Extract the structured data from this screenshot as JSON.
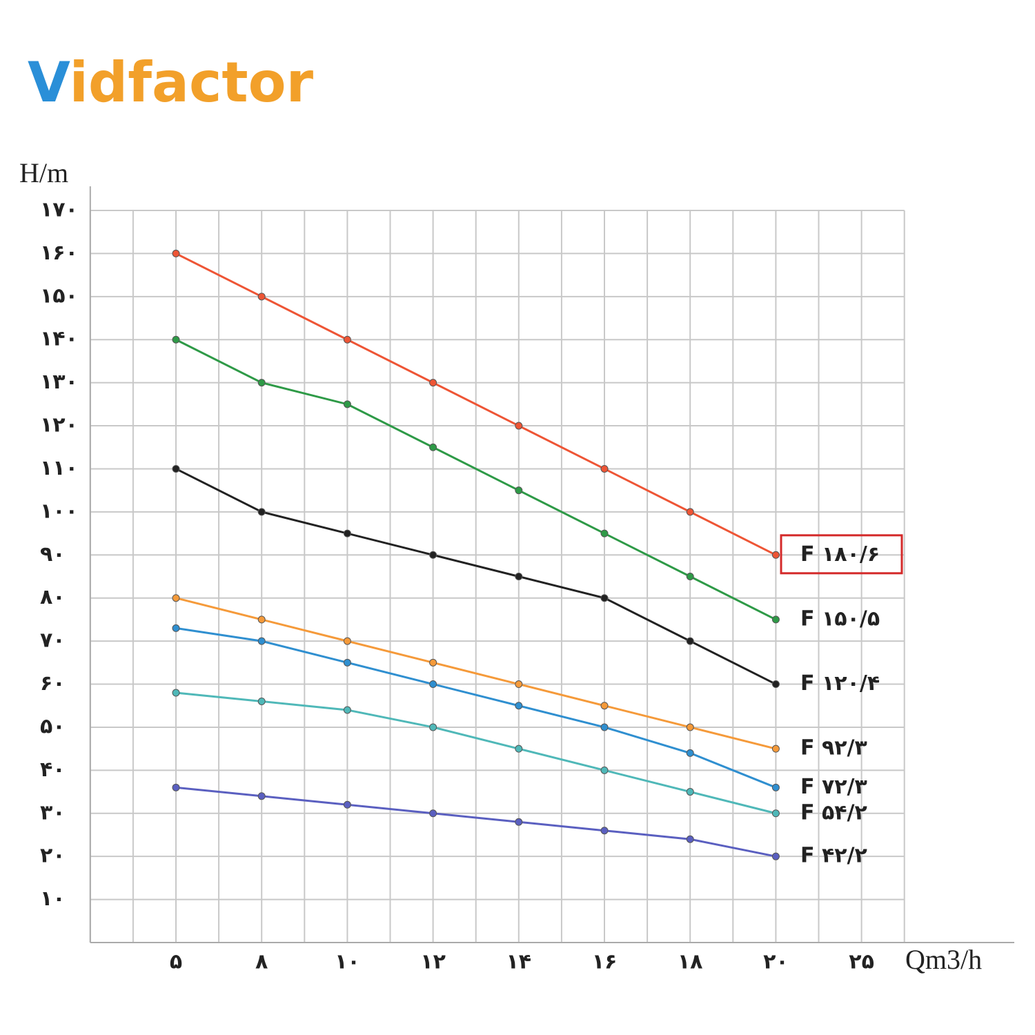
{
  "logo": "Vidfactor",
  "chart_data": {
    "type": "line",
    "ylabel": "H/m",
    "xlabel": "Qm3/h",
    "categories": [
      "۵",
      "۸",
      "۱۰",
      "۱۲",
      "۱۴",
      "۱۶",
      "۱۸",
      "۲۰",
      "۲۵"
    ],
    "ylim": [
      0,
      170
    ],
    "yticks": [
      {
        "value": 10,
        "label": "۱۰"
      },
      {
        "value": 20,
        "label": "۲۰"
      },
      {
        "value": 30,
        "label": "۳۰"
      },
      {
        "value": 40,
        "label": "۴۰"
      },
      {
        "value": 50,
        "label": "۵۰"
      },
      {
        "value": 60,
        "label": "۶۰"
      },
      {
        "value": 70,
        "label": "۷۰"
      },
      {
        "value": 80,
        "label": "۸۰"
      },
      {
        "value": 90,
        "label": "۹۰"
      },
      {
        "value": 100,
        "label": "۱۰۰"
      },
      {
        "value": 110,
        "label": "۱۱۰"
      },
      {
        "value": 120,
        "label": "۱۲۰"
      },
      {
        "value": 130,
        "label": "۱۳۰"
      },
      {
        "value": 140,
        "label": "۱۴۰"
      },
      {
        "value": 150,
        "label": "۱۵۰"
      },
      {
        "value": 160,
        "label": "۱۶۰"
      },
      {
        "value": 170,
        "label": "۱۷۰"
      }
    ],
    "grid": true,
    "series": [
      {
        "name": "F ۱۸۰/۶",
        "color": "#ee5535",
        "values": [
          160,
          150,
          140,
          130,
          120,
          110,
          100,
          90,
          null
        ]
      },
      {
        "name": "F ۱۵۰/۵",
        "color": "#2e9a47",
        "values": [
          140,
          130,
          125,
          115,
          105,
          95,
          85,
          75,
          null
        ]
      },
      {
        "name": "F ۱۲۰/۴",
        "color": "#222222",
        "values": [
          110,
          100,
          95,
          90,
          85,
          80,
          70,
          60,
          null
        ]
      },
      {
        "name": "F ۹۲/۳",
        "color": "#f59a3a",
        "values": [
          80,
          75,
          70,
          65,
          60,
          55,
          50,
          45,
          null
        ]
      },
      {
        "name": "F ۷۲/۳",
        "color": "#2f8fd0",
        "values": [
          73,
          70,
          65,
          60,
          55,
          50,
          44,
          36,
          null
        ]
      },
      {
        "name": "F ۵۴/۲",
        "color": "#4fb8b8",
        "values": [
          58,
          56,
          54,
          50,
          45,
          40,
          35,
          30,
          null
        ]
      },
      {
        "name": "F ۴۲/۲",
        "color": "#5a5fc0",
        "values": [
          36,
          34,
          32,
          30,
          28,
          26,
          24,
          20,
          null
        ]
      }
    ]
  }
}
